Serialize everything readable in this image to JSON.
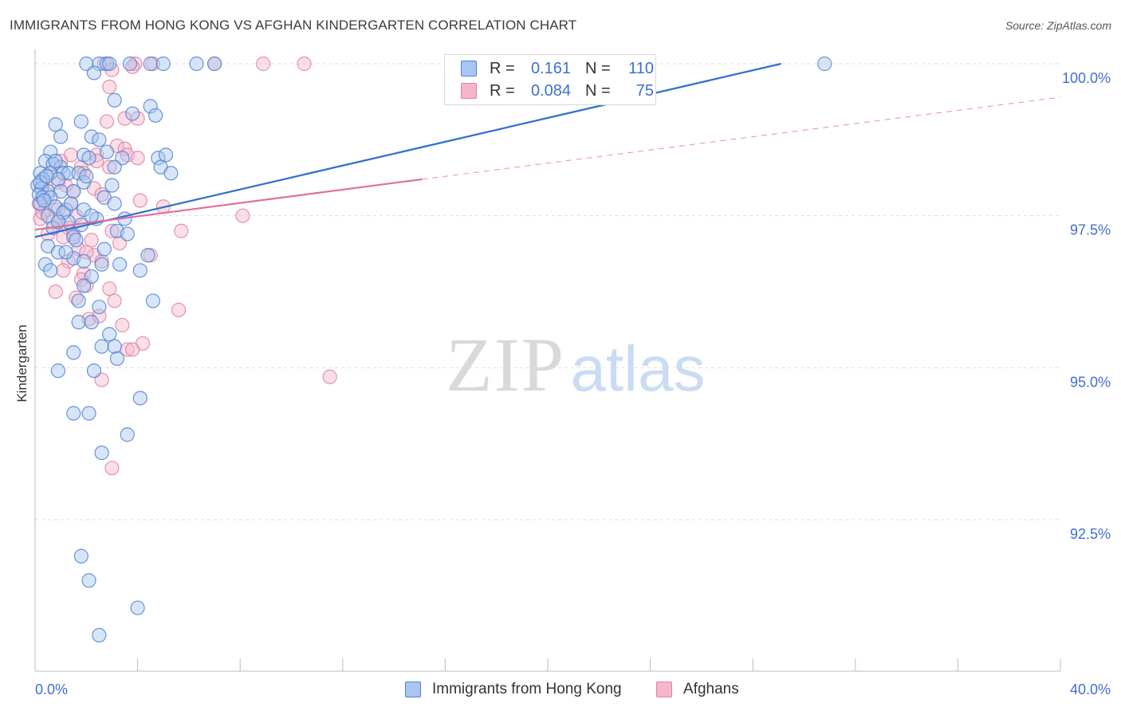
{
  "title": "IMMIGRANTS FROM HONG KONG VS AFGHAN KINDERGARTEN CORRELATION CHART",
  "source": "Source: ZipAtlas.com",
  "watermark": {
    "zip": "ZIP",
    "atlas": "atlas"
  },
  "colors": {
    "blue_fill": "#a9c6f0",
    "blue_stroke": "#4f83d4",
    "blue_line": "#2f6fd0",
    "pink_fill": "#f5b6cb",
    "pink_stroke": "#e0809f",
    "pink_line": "#e0709a",
    "grid": "#dddddd",
    "label": "#3f6fcf"
  },
  "legend_top": {
    "rows": [
      {
        "series": "blue",
        "r_label": "R =",
        "r_value": "0.161",
        "n_label": "N =",
        "n_value": "110"
      },
      {
        "series": "pink",
        "r_label": "R =",
        "r_value": "0.084",
        "n_label": "N =",
        "n_value": "75"
      }
    ]
  },
  "legend_bottom": [
    {
      "series": "blue",
      "label": "Immigrants from Hong Kong"
    },
    {
      "series": "pink",
      "label": "Afghans"
    }
  ],
  "chart_data": {
    "type": "scatter",
    "title": "IMMIGRANTS FROM HONG KONG VS AFGHAN KINDERGARTEN CORRELATION CHART",
    "xlabel": "",
    "ylabel": "Kindergarten",
    "xlim": [
      0,
      40
    ],
    "ylim": [
      90.2,
      100.2
    ],
    "x_tick_labels": [
      {
        "value": 0,
        "label": "0.0%"
      },
      {
        "value": 40,
        "label": "40.0%"
      }
    ],
    "y_tick_labels": [
      {
        "value": 100,
        "label": "100.0%"
      },
      {
        "value": 97.5,
        "label": "97.5%"
      },
      {
        "value": 95,
        "label": "95.0%"
      },
      {
        "value": 92.5,
        "label": "92.5%"
      }
    ],
    "y_gridlines": [
      100,
      97.5,
      95,
      92.5
    ],
    "x_minor_ticks": [
      0,
      4,
      8,
      12,
      16,
      20,
      24,
      28,
      32,
      36,
      40
    ],
    "series": [
      {
        "name": "Immigrants from Hong Kong",
        "color": "blue",
        "trend": {
          "x0": 0,
          "y0": 97.15,
          "x1": 29.1,
          "y1": 100.0,
          "dashed_to": null
        },
        "points": [
          [
            2.0,
            100
          ],
          [
            2.5,
            100
          ],
          [
            2.8,
            100
          ],
          [
            2.9,
            100
          ],
          [
            3.7,
            100
          ],
          [
            4.5,
            100
          ],
          [
            5.0,
            100
          ],
          [
            6.3,
            100
          ],
          [
            7.0,
            100
          ],
          [
            30.8,
            100
          ],
          [
            2.3,
            99.85
          ],
          [
            3.1,
            99.4
          ],
          [
            3.8,
            99.18
          ],
          [
            4.5,
            99.3
          ],
          [
            4.7,
            99.15
          ],
          [
            1.8,
            99.05
          ],
          [
            0.8,
            99.0
          ],
          [
            1.0,
            98.8
          ],
          [
            2.2,
            98.8
          ],
          [
            2.5,
            98.75
          ],
          [
            0.6,
            98.55
          ],
          [
            1.9,
            98.5
          ],
          [
            2.1,
            98.45
          ],
          [
            3.4,
            98.45
          ],
          [
            4.8,
            98.45
          ],
          [
            5.1,
            98.5
          ],
          [
            0.4,
            98.4
          ],
          [
            0.7,
            98.35
          ],
          [
            1.0,
            98.3
          ],
          [
            3.1,
            98.3
          ],
          [
            4.9,
            98.3
          ],
          [
            0.2,
            98.2
          ],
          [
            0.6,
            98.2
          ],
          [
            1.1,
            98.2
          ],
          [
            1.3,
            98.2
          ],
          [
            1.7,
            98.2
          ],
          [
            5.3,
            98.2
          ],
          [
            0.3,
            98.1
          ],
          [
            0.9,
            98.1
          ],
          [
            1.9,
            98.05
          ],
          [
            0.1,
            98.0
          ],
          [
            0.25,
            97.95
          ],
          [
            0.5,
            97.9
          ],
          [
            1.0,
            97.9
          ],
          [
            1.5,
            97.9
          ],
          [
            0.15,
            97.85
          ],
          [
            0.3,
            97.8
          ],
          [
            0.6,
            97.8
          ],
          [
            2.7,
            97.8
          ],
          [
            3.1,
            97.7
          ],
          [
            0.2,
            97.7
          ],
          [
            0.8,
            97.65
          ],
          [
            1.2,
            97.6
          ],
          [
            1.9,
            97.6
          ],
          [
            0.5,
            97.5
          ],
          [
            2.4,
            97.45
          ],
          [
            3.5,
            97.45
          ],
          [
            1.3,
            97.4
          ],
          [
            1.8,
            97.35
          ],
          [
            0.7,
            97.3
          ],
          [
            3.2,
            97.25
          ],
          [
            1.5,
            97.15
          ],
          [
            1.6,
            97.1
          ],
          [
            0.5,
            97.0
          ],
          [
            2.7,
            96.95
          ],
          [
            0.9,
            96.9
          ],
          [
            1.5,
            96.8
          ],
          [
            4.4,
            96.85
          ],
          [
            0.4,
            96.7
          ],
          [
            1.9,
            96.75
          ],
          [
            2.6,
            96.7
          ],
          [
            3.3,
            96.7
          ],
          [
            0.6,
            96.6
          ],
          [
            4.1,
            96.6
          ],
          [
            2.2,
            96.5
          ],
          [
            1.9,
            96.35
          ],
          [
            1.7,
            96.1
          ],
          [
            4.6,
            96.1
          ],
          [
            2.5,
            96.0
          ],
          [
            1.7,
            95.75
          ],
          [
            2.2,
            95.75
          ],
          [
            2.9,
            95.55
          ],
          [
            2.6,
            95.35
          ],
          [
            3.1,
            95.35
          ],
          [
            1.5,
            95.25
          ],
          [
            3.2,
            95.15
          ],
          [
            0.9,
            94.95
          ],
          [
            2.3,
            94.95
          ],
          [
            4.1,
            94.5
          ],
          [
            1.5,
            94.25
          ],
          [
            2.1,
            94.25
          ],
          [
            3.6,
            93.9
          ],
          [
            2.6,
            93.6
          ],
          [
            1.8,
            91.9
          ],
          [
            2.1,
            91.5
          ],
          [
            4.0,
            91.05
          ],
          [
            2.5,
            90.6
          ],
          [
            0.2,
            98.05
          ],
          [
            0.35,
            97.75
          ],
          [
            1.1,
            97.55
          ],
          [
            2.0,
            98.15
          ],
          [
            2.8,
            98.55
          ],
          [
            3.0,
            98.0
          ],
          [
            1.4,
            97.7
          ],
          [
            0.45,
            98.15
          ],
          [
            0.8,
            98.4
          ],
          [
            2.2,
            97.5
          ],
          [
            1.2,
            96.9
          ],
          [
            3.6,
            97.2
          ],
          [
            0.9,
            97.4
          ]
        ]
      },
      {
        "name": "Afghans",
        "color": "pink",
        "trend": {
          "x0": 0,
          "y0": 97.27,
          "x1": 15.1,
          "y1": 98.1,
          "dashed_to": {
            "x": 40,
            "y": 99.45
          }
        },
        "points": [
          [
            2.7,
            100
          ],
          [
            3.9,
            100
          ],
          [
            4.6,
            100
          ],
          [
            7.0,
            100
          ],
          [
            8.9,
            100
          ],
          [
            10.5,
            100
          ],
          [
            3.8,
            99.95
          ],
          [
            3.0,
            99.9
          ],
          [
            2.9,
            99.62
          ],
          [
            3.5,
            99.1
          ],
          [
            2.8,
            99.05
          ],
          [
            4.0,
            99.1
          ],
          [
            3.2,
            98.65
          ],
          [
            3.5,
            98.6
          ],
          [
            1.4,
            98.5
          ],
          [
            3.6,
            98.5
          ],
          [
            4.0,
            98.45
          ],
          [
            2.4,
            98.5
          ],
          [
            1.8,
            98.3
          ],
          [
            2.4,
            98.4
          ],
          [
            2.9,
            98.3
          ],
          [
            1.0,
            98.4
          ],
          [
            0.6,
            98.2
          ],
          [
            1.9,
            98.2
          ],
          [
            0.3,
            98.05
          ],
          [
            0.9,
            98.05
          ],
          [
            1.5,
            97.9
          ],
          [
            2.3,
            97.95
          ],
          [
            0.5,
            97.85
          ],
          [
            4.1,
            97.75
          ],
          [
            0.15,
            97.7
          ],
          [
            1.4,
            97.7
          ],
          [
            5.0,
            97.65
          ],
          [
            0.4,
            97.6
          ],
          [
            1.6,
            97.5
          ],
          [
            0.2,
            97.45
          ],
          [
            8.1,
            97.5
          ],
          [
            1.0,
            97.35
          ],
          [
            1.3,
            97.3
          ],
          [
            3.0,
            97.25
          ],
          [
            5.7,
            97.25
          ],
          [
            0.5,
            97.2
          ],
          [
            1.1,
            97.15
          ],
          [
            1.5,
            97.2
          ],
          [
            2.2,
            97.1
          ],
          [
            3.3,
            97.05
          ],
          [
            1.7,
            96.95
          ],
          [
            2.3,
            96.85
          ],
          [
            4.5,
            96.85
          ],
          [
            1.3,
            96.75
          ],
          [
            2.6,
            96.75
          ],
          [
            1.1,
            96.6
          ],
          [
            1.9,
            96.55
          ],
          [
            1.8,
            96.45
          ],
          [
            2.0,
            96.35
          ],
          [
            2.9,
            96.3
          ],
          [
            0.8,
            96.25
          ],
          [
            1.6,
            96.15
          ],
          [
            3.1,
            96.1
          ],
          [
            5.6,
            95.95
          ],
          [
            2.1,
            95.8
          ],
          [
            2.5,
            95.85
          ],
          [
            3.4,
            95.7
          ],
          [
            4.2,
            95.4
          ],
          [
            3.6,
            95.3
          ],
          [
            3.8,
            95.3
          ],
          [
            11.5,
            94.85
          ],
          [
            2.6,
            94.8
          ],
          [
            3.0,
            93.35
          ],
          [
            0.3,
            97.55
          ],
          [
            0.7,
            97.4
          ],
          [
            1.2,
            98.0
          ],
          [
            2.6,
            97.85
          ],
          [
            0.9,
            97.6
          ],
          [
            2.0,
            96.9
          ]
        ]
      }
    ]
  }
}
